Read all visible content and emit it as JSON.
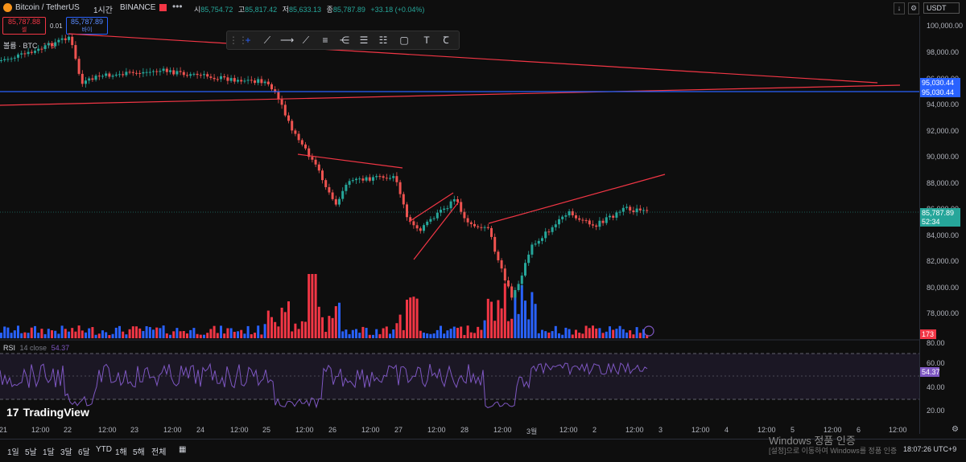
{
  "header": {
    "symbol": "Bitcoin / TetherUS",
    "interval": "1시간",
    "exchange": "BINANCE",
    "ohlc": {
      "open_label": "시",
      "open": "85,754.72",
      "high_label": "고",
      "high": "85,817.42",
      "low_label": "저",
      "low": "85,633.13",
      "close_label": "종",
      "close": "85,787.89",
      "change": "+33.18 (+0.04%)"
    },
    "currency": "USDT"
  },
  "trade": {
    "sell_price": "85,787.88",
    "sell_label": "셀",
    "spread": "0.01",
    "buy_price": "85,787.89",
    "buy_label": "바이"
  },
  "volume_legend": {
    "label": "볼륨 · BTC",
    "value": "173"
  },
  "price_axis": {
    "labels": [
      "100,000.00",
      "98,000.00",
      "96,000.00",
      "94,000.00",
      "92,000.00",
      "90,000.00",
      "88,000.00",
      "86,000.00",
      "84,000.00",
      "82,000.00",
      "80,000.00",
      "78,000.00"
    ],
    "tag_blue_1": "95,030.44",
    "tag_blue_2": "95,030.44",
    "tag_current": "85,787.89",
    "tag_countdown": "52:34",
    "tag_volume": "173"
  },
  "rsi": {
    "label": "RSI",
    "params": "14 close",
    "value": "54.37",
    "axis": [
      "80.00",
      "60.00",
      "40.00",
      "20.00"
    ]
  },
  "time_axis": [
    "21",
    "12:00",
    "22",
    "12:00",
    "23",
    "12:00",
    "24",
    "12:00",
    "25",
    "12:00",
    "26",
    "12:00",
    "27",
    "12:00",
    "28",
    "12:00",
    "3월",
    "12:00",
    "2",
    "12:00",
    "3",
    "12:00",
    "4",
    "12:00",
    "5",
    "12:00",
    "6",
    "12:00"
  ],
  "logo": "TradingView",
  "bottom_bar": {
    "ranges": [
      "1일",
      "5날",
      "1달",
      "3달",
      "6달",
      "YTD",
      "1해",
      "5해",
      "전체"
    ],
    "watermark_title": "Windows 정품 인증",
    "watermark_sub": "[설정]으로 이동하여 Windows를 정품 인증",
    "time": "18:07:26 UTC+9"
  },
  "colors": {
    "up": "#26a69a",
    "down": "#ef5350",
    "vol_up": "#2962ff",
    "vol_down": "#f23645",
    "line": "#f23645",
    "hline": "#2962ff",
    "rsi": "#7e57c2"
  },
  "chart_data": {
    "type": "candlestick",
    "interval": "1시간",
    "series": [
      {
        "name": "볼륨 · BTC"
      },
      {
        "name": "RSI"
      }
    ]
  }
}
